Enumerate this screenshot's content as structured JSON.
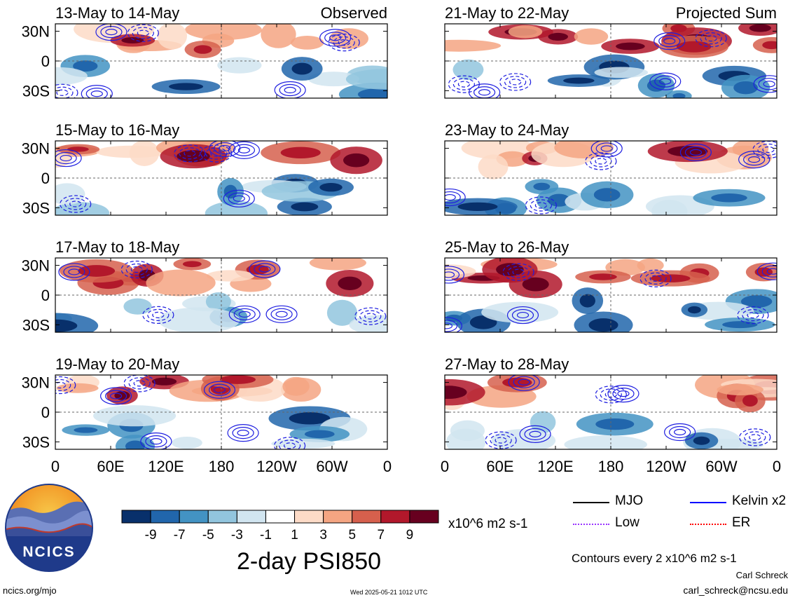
{
  "chart_data": {
    "type": "heatmap",
    "variable": "2-day PSI850",
    "title": "2-day PSI850",
    "units": "x10^6 m2 s-1",
    "contour_note": "Contours every 2 x10^6 m2 s-1",
    "columns": [
      "Observed",
      "Projected Sum"
    ],
    "lat_ticks": [
      "30N",
      "0",
      "30S"
    ],
    "lon_ticks": [
      "0",
      "60E",
      "120E",
      "180",
      "120W",
      "60W",
      "0"
    ],
    "colorbar": {
      "levels": [
        -9,
        -7,
        -5,
        -3,
        -1,
        1,
        3,
        5,
        7,
        9
      ],
      "colors": [
        "#08306b",
        "#2166ac",
        "#4393c3",
        "#92c5de",
        "#d1e5f0",
        "#ffffff",
        "#fddbc7",
        "#f4a582",
        "#d6604d",
        "#b2182b",
        "#67001f"
      ]
    },
    "legend": [
      {
        "label": "MJO",
        "color": "#000000"
      },
      {
        "label": "Kelvin x2",
        "color": "#0000ff"
      },
      {
        "label": "Low",
        "color": "#9933ff"
      },
      {
        "label": "ER",
        "color": "#ff0000"
      }
    ],
    "panels": [
      {
        "period": "13-May to 14-May",
        "column": 0,
        "row": 0
      },
      {
        "period": "15-May to 16-May",
        "column": 0,
        "row": 1
      },
      {
        "period": "17-May to 18-May",
        "column": 0,
        "row": 2
      },
      {
        "period": "19-May to 20-May",
        "column": 0,
        "row": 3
      },
      {
        "period": "21-May to 22-May",
        "column": 1,
        "row": 0
      },
      {
        "period": "23-May to 24-May",
        "column": 1,
        "row": 1
      },
      {
        "period": "25-May to 26-May",
        "column": 1,
        "row": 2
      },
      {
        "period": "27-May to 28-May",
        "column": 1,
        "row": 3
      }
    ]
  },
  "logo": {
    "text": "NCICS"
  },
  "footer": {
    "url": "ncics.org/mjo",
    "timestamp": "Wed 2025-05-21 1012 UTC",
    "author": "Carl Schreck",
    "email": "carl_schreck@ncsu.edu"
  }
}
